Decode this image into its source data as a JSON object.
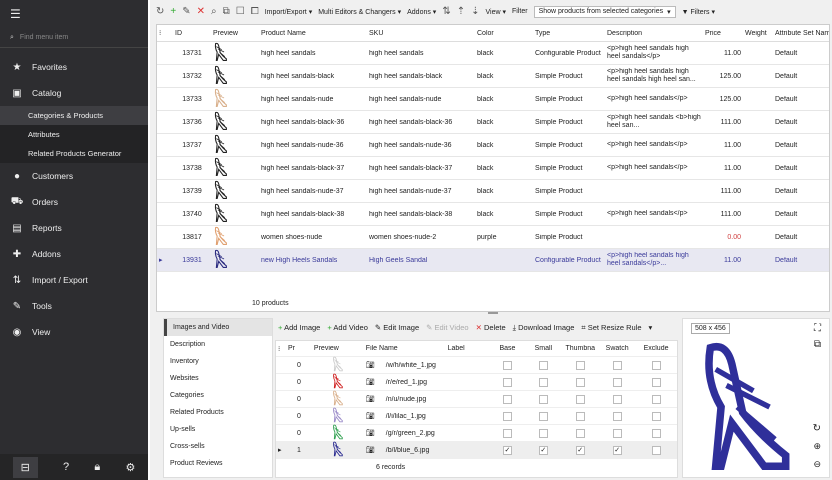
{
  "sidebar": {
    "search_placeholder": "Find menu item",
    "items": [
      {
        "label": "Favorites",
        "icon": "star-icon",
        "glyph": "★"
      },
      {
        "label": "Catalog",
        "icon": "box-icon",
        "glyph": "▣"
      },
      {
        "label": "Customers",
        "icon": "user-icon",
        "glyph": "●"
      },
      {
        "label": "Orders",
        "icon": "cart-icon",
        "glyph": "⛟"
      },
      {
        "label": "Reports",
        "icon": "chart-icon",
        "glyph": "▤"
      },
      {
        "label": "Addons",
        "icon": "puzzle-icon",
        "glyph": "✚"
      },
      {
        "label": "Import / Export",
        "icon": "import-export-icon",
        "glyph": "⇅"
      },
      {
        "label": "Tools",
        "icon": "wrench-icon",
        "glyph": "✎"
      },
      {
        "label": "View",
        "icon": "eye-icon",
        "glyph": "◉"
      }
    ],
    "catalog_sub": [
      "Categories & Products",
      "Attributes",
      "Related Products Generator"
    ]
  },
  "toolbar": {
    "import_export": "Import/Export",
    "multi_editors": "Multi Editors & Changers",
    "addons": "Addons",
    "view": "View",
    "filter_label": "Filter",
    "filter_value": "Show products from selected categories",
    "filters": "Filters"
  },
  "grid": {
    "columns": [
      "ID",
      "Preview",
      "Product Name",
      "SKU",
      "Color",
      "Type",
      "Description",
      "Price",
      "Weight",
      "Attribute Set Name"
    ],
    "rows": [
      {
        "id": "13731",
        "name": "high heel sandals",
        "sku": "high heel sandals",
        "color": "black",
        "type": "Configurable Product",
        "desc": "<p>high heel sandals high heel sandals</p>",
        "price": "11.00",
        "attr": "Default",
        "shoe": "#222"
      },
      {
        "id": "13732",
        "name": "high heel sandals-black",
        "sku": "high heel sandals-black",
        "color": "black",
        "type": "Simple Product",
        "desc": "<p>high heel sandals high heel sandals high heel san...",
        "price": "125.00",
        "attr": "Default",
        "shoe": "#222"
      },
      {
        "id": "13733",
        "name": "high heel sandals-nude",
        "sku": "high heel sandals-nude",
        "color": "black",
        "type": "Simple Product",
        "desc": "<p>high heel sandals</p>",
        "price": "125.00",
        "attr": "Default",
        "shoe": "#d9b08c"
      },
      {
        "id": "13736",
        "name": "high heel sandals-black-36",
        "sku": "high heel sandals-black-36",
        "color": "black",
        "type": "Simple Product",
        "desc": "<p>high heel sandals <b>high heel san...",
        "price": "111.00",
        "attr": "Default",
        "shoe": "#222"
      },
      {
        "id": "13737",
        "name": "high heel sandals-nude-36",
        "sku": "high heel sandals-nude-36",
        "color": "black",
        "type": "Simple Product",
        "desc": "<p>high heel sandals</p>",
        "price": "11.00",
        "attr": "Default",
        "shoe": "#222"
      },
      {
        "id": "13738",
        "name": "high heel sandals-black-37",
        "sku": "high heel sandals-black-37",
        "color": "black",
        "type": "Simple Product",
        "desc": "<p>high heel sandals</p>",
        "price": "11.00",
        "attr": "Default",
        "shoe": "#222"
      },
      {
        "id": "13739",
        "name": "high heel sandals-nude-37",
        "sku": "high heel sandals-nude-37",
        "color": "black",
        "type": "Simple Product",
        "desc": "",
        "price": "111.00",
        "attr": "Default",
        "shoe": "#222"
      },
      {
        "id": "13740",
        "name": "high heel sandals-black-38",
        "sku": "high heel sandals-black-38",
        "color": "black",
        "type": "Simple Product",
        "desc": "<p>high heel sandals</p>",
        "price": "111.00",
        "attr": "Default",
        "shoe": "#222"
      },
      {
        "id": "13817",
        "name": "women shoes-nude",
        "sku": "women shoes-nude-2",
        "color": "purple",
        "type": "Simple Product",
        "desc": "",
        "price": "0.00",
        "attr": "Default",
        "shoe": "#e0a070",
        "price_color": "#d04040"
      },
      {
        "id": "13931",
        "name": "new High Heels Sandals",
        "sku": "High Geels Sandal",
        "color": "",
        "type": "Configurable Product",
        "desc": "<p>high heel sandals high heel sandals</p>...",
        "price": "11.00",
        "attr": "Default",
        "shoe": "#2a2a80",
        "selected": true
      }
    ],
    "footer": "10 products"
  },
  "tabs": [
    "Images and Video",
    "Description",
    "Inventory",
    "Websites",
    "Categories",
    "Related Products",
    "Up-sells",
    "Cross-sells",
    "Product Reviews"
  ],
  "image_toolbar": [
    "Add Image",
    "Add Video",
    "Edit Image",
    "Edit Video",
    "Delete",
    "Download Image",
    "Set Resize Rule"
  ],
  "images": {
    "columns": [
      "Pr",
      "Preview",
      "File Name",
      "Label",
      "Base",
      "Small",
      "Thumbna",
      "Swatch",
      "Exclude"
    ],
    "rows": [
      {
        "pos": "0",
        "file": "/w/h/white_1.jpg",
        "checks": [
          false,
          false,
          false,
          false,
          false
        ],
        "shoe": "#ccc"
      },
      {
        "pos": "0",
        "file": "/r/e/red_1.jpg",
        "checks": [
          false,
          false,
          false,
          false,
          false
        ],
        "shoe": "#d02020"
      },
      {
        "pos": "0",
        "file": "/n/u/nude.jpg",
        "checks": [
          false,
          false,
          false,
          false,
          false
        ],
        "shoe": "#d9b08c"
      },
      {
        "pos": "0",
        "file": "/l/i/lilac_1.jpg",
        "checks": [
          false,
          false,
          false,
          false,
          false
        ],
        "shoe": "#9a8ac8"
      },
      {
        "pos": "0",
        "file": "/g/r/green_2.jpg",
        "checks": [
          false,
          false,
          false,
          false,
          false
        ],
        "shoe": "#30a050"
      },
      {
        "pos": "1",
        "file": "/b/l/blue_6.jpg",
        "checks": [
          true,
          true,
          true,
          true,
          false
        ],
        "shoe": "#2a2a90",
        "selected": true
      }
    ],
    "footer": "6 records"
  },
  "preview": {
    "dimensions": "508 x 456",
    "shoe": "#2f2f9a"
  }
}
